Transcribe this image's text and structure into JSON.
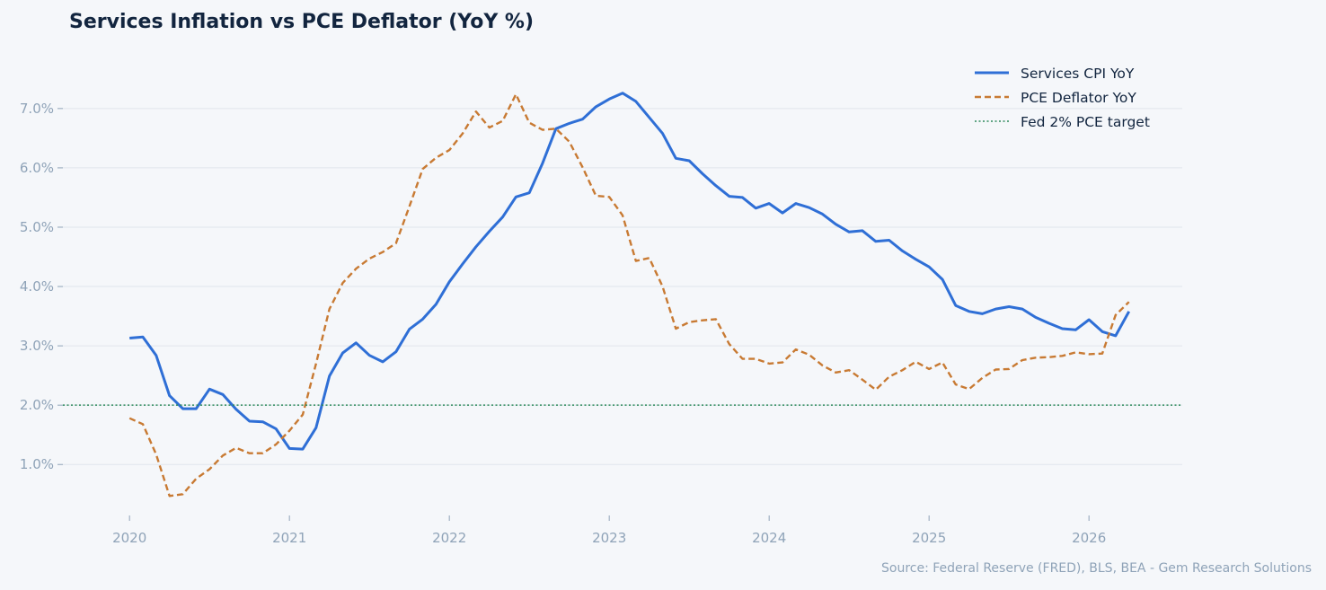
{
  "chart_data": {
    "type": "line",
    "title": "Services Inflation vs PCE Deflator (YoY %)",
    "xlabel": "",
    "ylabel": "",
    "source": "Source: Federal Reserve (FRED), BLS, BEA - Gem Research Solutions",
    "x_ticks": [
      "2020",
      "2021",
      "2022",
      "2023",
      "2024",
      "2025",
      "2026"
    ],
    "y_ticks": [
      "1.0%",
      "2.0%",
      "3.0%",
      "4.0%",
      "5.0%",
      "6.0%",
      "7.0%"
    ],
    "x_range": [
      "2019-08",
      "2026-08"
    ],
    "ylim": [
      0.05,
      7.8
    ],
    "grid": "horizontal",
    "legend_position": "top-right",
    "x_start": "2020-01",
    "x_step": "monthly",
    "series": [
      {
        "name": "Services CPI YoY",
        "color": "#2f6fd6",
        "style": "solid",
        "values": [
          3.13,
          3.15,
          2.84,
          2.16,
          1.94,
          1.94,
          2.27,
          2.18,
          1.93,
          1.73,
          1.72,
          1.6,
          1.27,
          1.26,
          1.62,
          2.49,
          2.88,
          3.05,
          2.84,
          2.73,
          2.9,
          3.28,
          3.45,
          3.7,
          4.08,
          4.38,
          4.67,
          4.93,
          5.17,
          5.51,
          5.58,
          6.08,
          6.66,
          6.75,
          6.82,
          7.03,
          7.16,
          7.26,
          7.12,
          6.85,
          6.58,
          6.16,
          6.12,
          5.9,
          5.7,
          5.52,
          5.5,
          5.32,
          5.4,
          5.24,
          5.4,
          5.33,
          5.22,
          5.05,
          4.92,
          4.94,
          4.76,
          4.78,
          4.6,
          4.46,
          4.33,
          4.12,
          3.68,
          3.58,
          3.54,
          3.62,
          3.66,
          3.62,
          3.48,
          3.38,
          3.29,
          3.27,
          3.44,
          3.24,
          3.17,
          3.58
        ]
      },
      {
        "name": "PCE Deflator YoY",
        "color": "#c87a33",
        "style": "dashed",
        "values": [
          1.78,
          1.68,
          1.17,
          0.47,
          0.5,
          0.76,
          0.92,
          1.15,
          1.28,
          1.19,
          1.19,
          1.34,
          1.57,
          1.84,
          2.7,
          3.62,
          4.06,
          4.3,
          4.47,
          4.58,
          4.73,
          5.35,
          5.98,
          6.17,
          6.3,
          6.58,
          6.95,
          6.68,
          6.79,
          7.24,
          6.76,
          6.64,
          6.66,
          6.44,
          6.01,
          5.53,
          5.51,
          5.2,
          4.43,
          4.48,
          4.0,
          3.29,
          3.4,
          3.43,
          3.45,
          3.03,
          2.78,
          2.78,
          2.7,
          2.72,
          2.94,
          2.85,
          2.67,
          2.55,
          2.59,
          2.43,
          2.26,
          2.48,
          2.59,
          2.73,
          2.61,
          2.72,
          2.35,
          2.27,
          2.46,
          2.6,
          2.61,
          2.76,
          2.8,
          2.81,
          2.83,
          2.89,
          2.86,
          2.87,
          3.52,
          3.74
        ]
      },
      {
        "name": "Fed 2% PCE target",
        "color": "#2e8a5c",
        "style": "dotted",
        "values": [
          2.0
        ]
      }
    ]
  }
}
